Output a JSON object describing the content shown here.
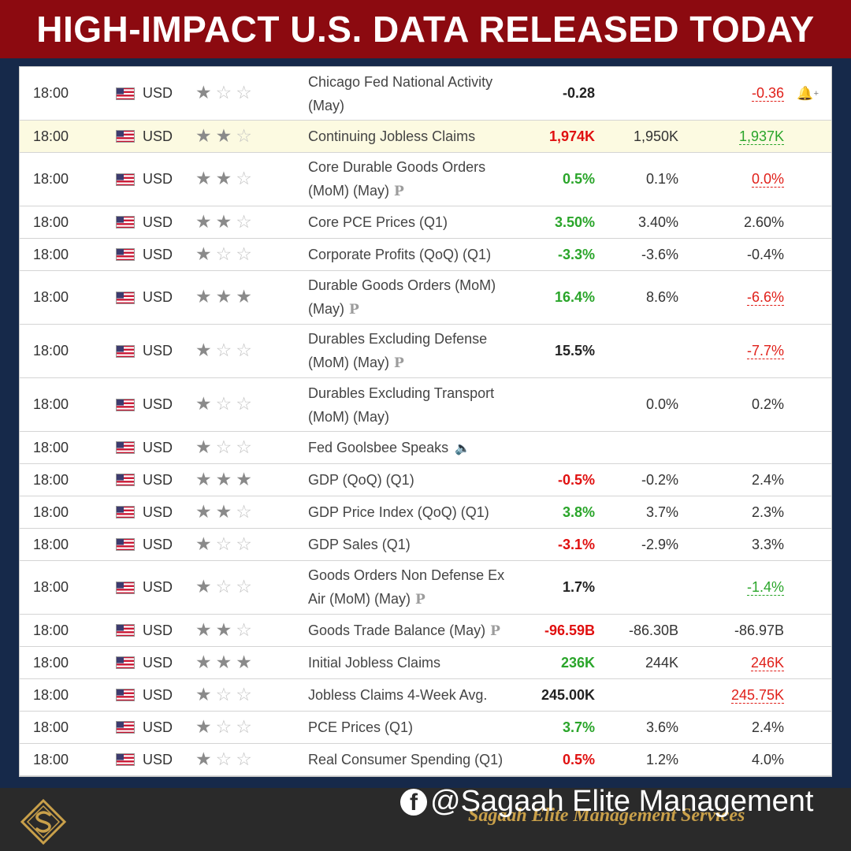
{
  "header": {
    "title": "HIGH-IMPACT U.S. DATA RELEASED TODAY"
  },
  "rows": [
    {
      "time": "18:00",
      "currency": "USD",
      "importance": 1,
      "event_line1": "Chicago Fed National Activity",
      "event_line2": "(May)",
      "event_badge": "",
      "actual": "-0.28",
      "actual_color": "black",
      "forecast": "",
      "previous": "-0.36",
      "previous_color": "red",
      "bell": "bell-plus-icon",
      "highlight": false
    },
    {
      "time": "18:00",
      "currency": "USD",
      "importance": 2,
      "event_line1": "Continuing Jobless Claims",
      "event_line2": "",
      "event_badge": "",
      "actual": "1,974K",
      "actual_color": "red",
      "forecast": "1,950K",
      "previous": "1,937K",
      "previous_color": "green",
      "highlight": true
    },
    {
      "time": "18:00",
      "currency": "USD",
      "importance": 2,
      "event_line1": "Core Durable Goods Orders",
      "event_line2": "(MoM) (May)",
      "event_badge": "P",
      "actual": "0.5%",
      "actual_color": "green",
      "forecast": "0.1%",
      "previous": "0.0%",
      "previous_color": "red",
      "highlight": false
    },
    {
      "time": "18:00",
      "currency": "USD",
      "importance": 2,
      "event_line1": "Core PCE Prices (Q1)",
      "event_line2": "",
      "event_badge": "",
      "actual": "3.50%",
      "actual_color": "green",
      "forecast": "3.40%",
      "previous": "2.60%",
      "previous_color": "black",
      "highlight": false
    },
    {
      "time": "18:00",
      "currency": "USD",
      "importance": 1,
      "event_line1": "Corporate Profits (QoQ) (Q1)",
      "event_line2": "",
      "event_badge": "",
      "actual": "-3.3%",
      "actual_color": "green",
      "forecast": "-3.6%",
      "previous": "-0.4%",
      "previous_color": "black",
      "highlight": false
    },
    {
      "time": "18:00",
      "currency": "USD",
      "importance": 3,
      "event_line1": "Durable Goods Orders (MoM)",
      "event_line2": "(May)",
      "event_badge": "P",
      "actual": "16.4%",
      "actual_color": "green",
      "forecast": "8.6%",
      "previous": "-6.6%",
      "previous_color": "red",
      "highlight": false
    },
    {
      "time": "18:00",
      "currency": "USD",
      "importance": 1,
      "event_line1": "Durables Excluding Defense",
      "event_line2": "(MoM) (May)",
      "event_badge": "P",
      "actual": "15.5%",
      "actual_color": "black",
      "forecast": "",
      "previous": "-7.7%",
      "previous_color": "red",
      "highlight": false
    },
    {
      "time": "18:00",
      "currency": "USD",
      "importance": 1,
      "event_line1": "Durables Excluding Transport",
      "event_line2": "(MoM) (May)",
      "event_badge": "",
      "actual": "",
      "actual_color": "black",
      "forecast": "0.0%",
      "previous": "0.2%",
      "previous_color": "black",
      "highlight": false
    },
    {
      "time": "18:00",
      "currency": "USD",
      "importance": 1,
      "event_line1": "Fed Goolsbee Speaks",
      "event_line2": "",
      "event_badge": "",
      "speaker": true,
      "actual": "",
      "actual_color": "black",
      "forecast": "",
      "previous": "",
      "previous_color": "black",
      "highlight": false
    },
    {
      "time": "18:00",
      "currency": "USD",
      "importance": 3,
      "event_line1": "GDP (QoQ) (Q1)",
      "event_line2": "",
      "event_badge": "",
      "actual": "-0.5%",
      "actual_color": "red",
      "forecast": "-0.2%",
      "previous": "2.4%",
      "previous_color": "black",
      "highlight": false
    },
    {
      "time": "18:00",
      "currency": "USD",
      "importance": 2,
      "event_line1": "GDP Price Index (QoQ) (Q1)",
      "event_line2": "",
      "event_badge": "",
      "actual": "3.8%",
      "actual_color": "green",
      "forecast": "3.7%",
      "previous": "2.3%",
      "previous_color": "black",
      "highlight": false
    },
    {
      "time": "18:00",
      "currency": "USD",
      "importance": 1,
      "event_line1": "GDP Sales (Q1)",
      "event_line2": "",
      "event_badge": "",
      "actual": "-3.1%",
      "actual_color": "red",
      "forecast": "-2.9%",
      "previous": "3.3%",
      "previous_color": "black",
      "highlight": false
    },
    {
      "time": "18:00",
      "currency": "USD",
      "importance": 1,
      "event_line1": "Goods Orders Non Defense Ex",
      "event_line2": "Air (MoM) (May)",
      "event_badge": "P",
      "actual": "1.7%",
      "actual_color": "black",
      "forecast": "",
      "previous": "-1.4%",
      "previous_color": "green",
      "highlight": false
    },
    {
      "time": "18:00",
      "currency": "USD",
      "importance": 2,
      "event_line1": "Goods Trade Balance (May)",
      "event_line2": "",
      "event_badge": "P",
      "actual": "-96.59B",
      "actual_color": "red",
      "forecast": "-86.30B",
      "previous": "-86.97B",
      "previous_color": "black",
      "highlight": false
    },
    {
      "time": "18:00",
      "currency": "USD",
      "importance": 3,
      "event_line1": "Initial Jobless Claims",
      "event_line2": "",
      "event_badge": "",
      "actual": "236K",
      "actual_color": "green",
      "forecast": "244K",
      "previous": "246K",
      "previous_color": "red",
      "highlight": false
    },
    {
      "time": "18:00",
      "currency": "USD",
      "importance": 1,
      "event_line1": "Jobless Claims 4-Week Avg.",
      "event_line2": "",
      "event_badge": "",
      "actual": "245.00K",
      "actual_color": "black",
      "forecast": "",
      "previous": "245.75K",
      "previous_color": "red",
      "highlight": false
    },
    {
      "time": "18:00",
      "currency": "USD",
      "importance": 1,
      "event_line1": "PCE Prices (Q1)",
      "event_line2": "",
      "event_badge": "",
      "actual": "3.7%",
      "actual_color": "green",
      "forecast": "3.6%",
      "previous": "2.4%",
      "previous_color": "black",
      "highlight": false
    },
    {
      "time": "18:00",
      "currency": "USD",
      "importance": 1,
      "event_line1": "Real Consumer Spending (Q1)",
      "event_line2": "",
      "event_badge": "",
      "actual": "0.5%",
      "actual_color": "red",
      "forecast": "1.2%",
      "previous": "4.0%",
      "previous_color": "black",
      "highlight": false
    }
  ],
  "footer": {
    "social_icon": "facebook-icon",
    "social_handle": "@Sagaah Elite Management",
    "company_name": "Sagaah Elite Management Services",
    "logo_icon": "s-diamond-logo",
    "accent": "#c9a04a"
  }
}
